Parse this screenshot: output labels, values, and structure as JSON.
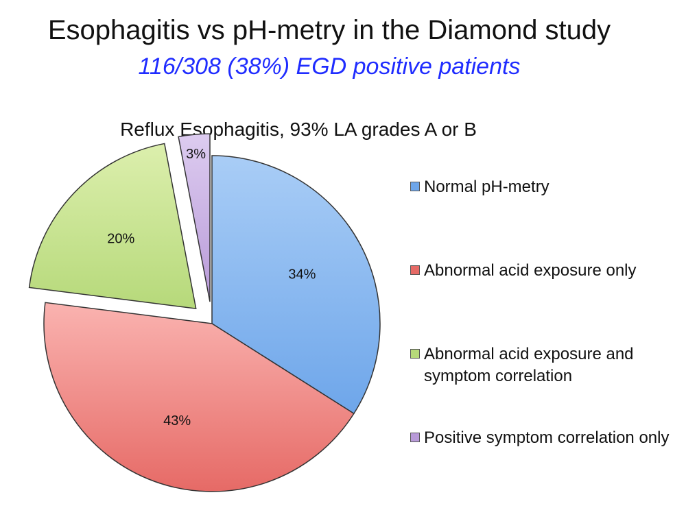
{
  "header": {
    "title": "Esophagitis vs pH-metry in the Diamond study",
    "subtitle": "116/308 (38%) EGD positive patients",
    "subtitle_color": "#1f2cff"
  },
  "chart_data": {
    "type": "pie",
    "title": "Reflux Esophagitis, 93% LA grades A or B",
    "slices": [
      {
        "label": "Normal pH-metry",
        "value": 34,
        "display": "34%",
        "color": "#6ea6ea",
        "light": "#a9cdf6",
        "exploded": false
      },
      {
        "label": "Abnormal acid exposure only",
        "value": 43,
        "display": "43%",
        "color": "#e66a66",
        "light": "#fab3b0",
        "exploded": false
      },
      {
        "label": "Abnormal acid exposure and symptom correlation",
        "value": 20,
        "display": "20%",
        "color": "#b6d97a",
        "light": "#dcefad",
        "exploded": true
      },
      {
        "label": "Positive symptom correlation only",
        "value": 3,
        "display": "3%",
        "color": "#b89ad8",
        "light": "#ddccf0",
        "exploded": true
      }
    ],
    "legend_placement": "right"
  }
}
